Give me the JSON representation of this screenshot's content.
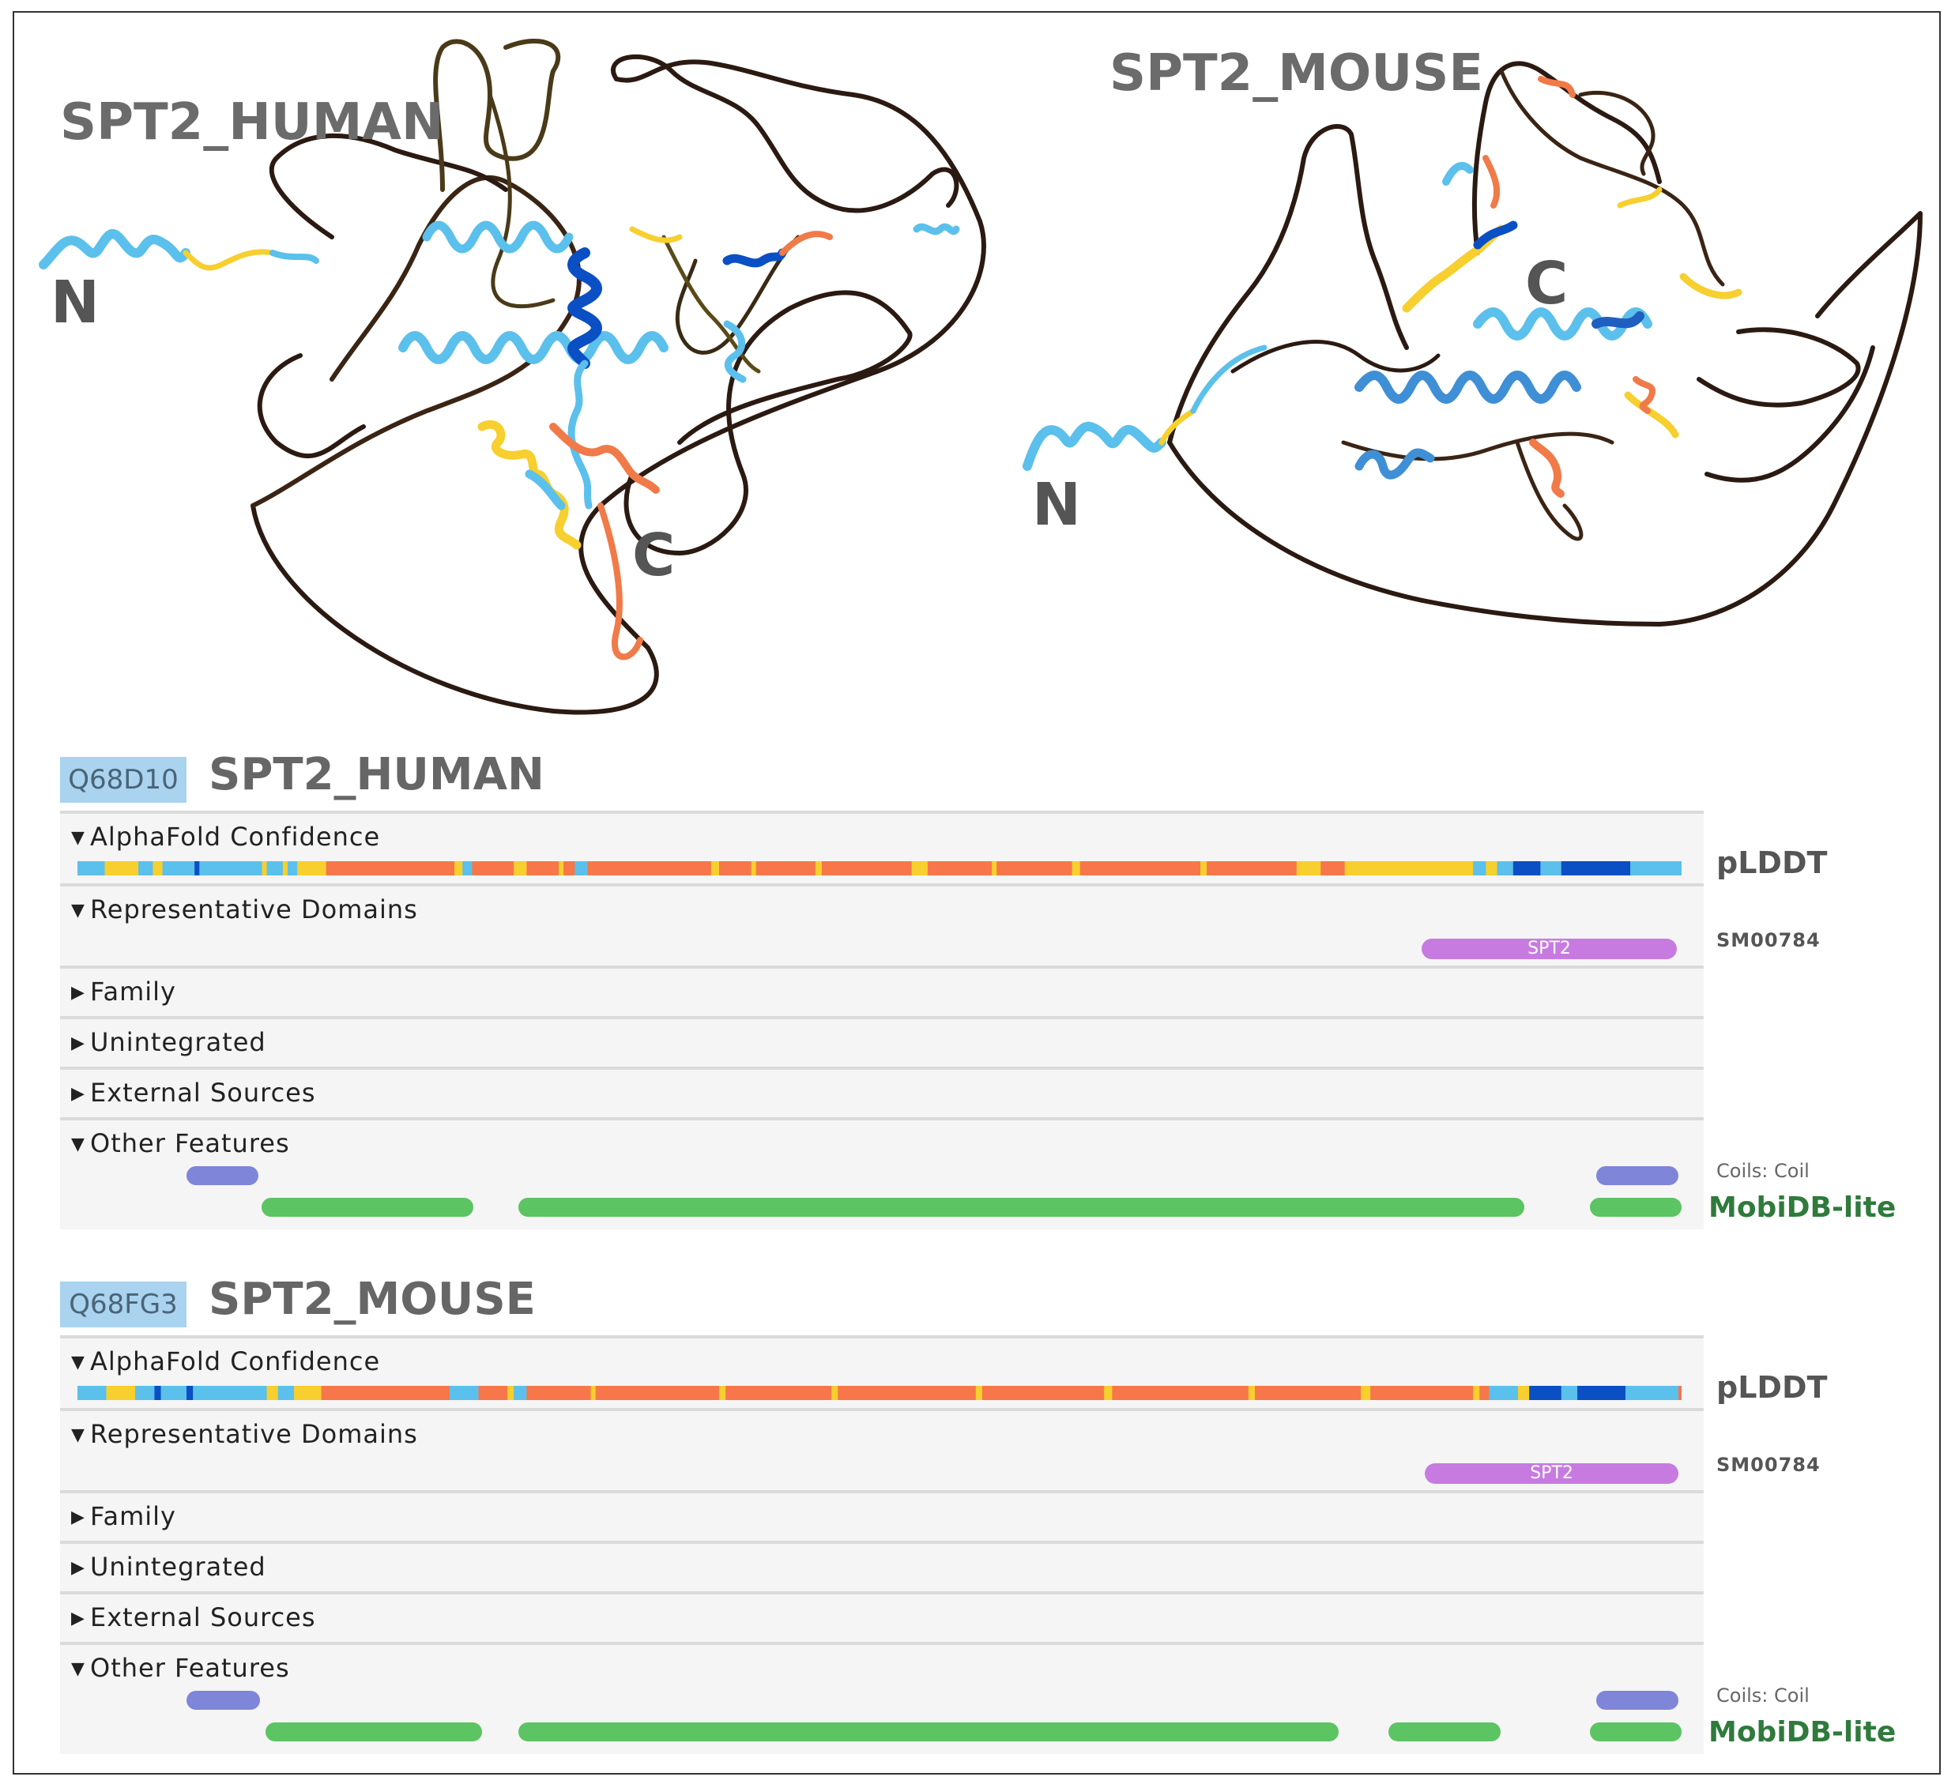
{
  "structures": {
    "human": {
      "title": "SPT2_HUMAN",
      "n_label": "N",
      "c_label": "C"
    },
    "mouse": {
      "title": "SPT2_MOUSE",
      "n_label": "N",
      "c_label": "C"
    }
  },
  "colors": {
    "very_high": "#0a4fc4",
    "confident": "#5bc0eb",
    "low": "#f7cf2e",
    "very_low": "#f7774a",
    "coil": "#7f85d9",
    "mobidb": "#5cc462",
    "domain": "#c77be0"
  },
  "panels": [
    {
      "accession": "Q68D10",
      "title": "SPT2_HUMAN",
      "sections": {
        "alphafold": "AlphaFold Confidence",
        "domains": "Representative Domains",
        "family": "Family",
        "unintegrated": "Unintegrated",
        "external": "External Sources",
        "other": "Other Features"
      },
      "plddt_label": "pLDDT",
      "domain": {
        "name": "SPT2",
        "source": "SM00784",
        "start": 0.838,
        "end": 0.997
      },
      "coils_label": "Coils: Coil",
      "mobidb_label": "MobiDB-lite",
      "coils": [
        [
          0.068,
          0.113
        ],
        [
          0.947,
          0.998
        ]
      ],
      "mobidb": [
        [
          0.115,
          0.247
        ],
        [
          0.275,
          0.902
        ],
        [
          0.943,
          1.0
        ]
      ],
      "plddt": [
        [
          "confident",
          0.0,
          0.017
        ],
        [
          "low",
          0.017,
          0.038
        ],
        [
          "confident",
          0.038,
          0.047
        ],
        [
          "low",
          0.047,
          0.053
        ],
        [
          "confident",
          0.053,
          0.073
        ],
        [
          "very_high",
          0.073,
          0.076
        ],
        [
          "confident",
          0.076,
          0.115
        ],
        [
          "low",
          0.115,
          0.118
        ],
        [
          "confident",
          0.118,
          0.128
        ],
        [
          "low",
          0.128,
          0.131
        ],
        [
          "confident",
          0.131,
          0.137
        ],
        [
          "low",
          0.137,
          0.155
        ],
        [
          "very_low",
          0.155,
          0.235
        ],
        [
          "low",
          0.235,
          0.24
        ],
        [
          "confident",
          0.24,
          0.246
        ],
        [
          "very_low",
          0.246,
          0.272
        ],
        [
          "low",
          0.272,
          0.28
        ],
        [
          "very_low",
          0.28,
          0.3
        ],
        [
          "low",
          0.3,
          0.303
        ],
        [
          "very_low",
          0.303,
          0.31
        ],
        [
          "confident",
          0.31,
          0.318
        ],
        [
          "very_low",
          0.318,
          0.395
        ],
        [
          "low",
          0.395,
          0.4
        ],
        [
          "very_low",
          0.4,
          0.42
        ],
        [
          "low",
          0.42,
          0.423
        ],
        [
          "very_low",
          0.423,
          0.46
        ],
        [
          "low",
          0.46,
          0.464
        ],
        [
          "very_low",
          0.464,
          0.52
        ],
        [
          "low",
          0.52,
          0.53
        ],
        [
          "very_low",
          0.53,
          0.57
        ],
        [
          "low",
          0.57,
          0.573
        ],
        [
          "very_low",
          0.573,
          0.62
        ],
        [
          "low",
          0.62,
          0.625
        ],
        [
          "very_low",
          0.625,
          0.7
        ],
        [
          "low",
          0.7,
          0.704
        ],
        [
          "very_low",
          0.704,
          0.76
        ],
        [
          "low",
          0.76,
          0.775
        ],
        [
          "very_low",
          0.775,
          0.79
        ],
        [
          "low",
          0.79,
          0.87
        ],
        [
          "confident",
          0.87,
          0.878
        ],
        [
          "low",
          0.878,
          0.885
        ],
        [
          "confident",
          0.885,
          0.895
        ],
        [
          "very_high",
          0.895,
          0.912
        ],
        [
          "confident",
          0.912,
          0.925
        ],
        [
          "very_high",
          0.925,
          0.968
        ],
        [
          "confident",
          0.968,
          1.0
        ]
      ]
    },
    {
      "accession": "Q68FG3",
      "title": "SPT2_MOUSE",
      "sections": {
        "alphafold": "AlphaFold Confidence",
        "domains": "Representative Domains",
        "family": "Family",
        "unintegrated": "Unintegrated",
        "external": "External Sources",
        "other": "Other Features"
      },
      "plddt_label": "pLDDT",
      "domain": {
        "name": "SPT2",
        "source": "SM00784",
        "start": 0.84,
        "end": 0.998
      },
      "coils_label": "Coils: Coil",
      "mobidb_label": "MobiDB-lite",
      "coils": [
        [
          0.068,
          0.114
        ],
        [
          0.947,
          0.998
        ]
      ],
      "mobidb": [
        [
          0.117,
          0.252
        ],
        [
          0.275,
          0.786
        ],
        [
          0.817,
          0.887
        ],
        [
          0.943,
          1.0
        ]
      ],
      "plddt": [
        [
          "confident",
          0.0,
          0.018
        ],
        [
          "low",
          0.018,
          0.036
        ],
        [
          "confident",
          0.036,
          0.048
        ],
        [
          "very_high",
          0.048,
          0.052
        ],
        [
          "confident",
          0.052,
          0.068
        ],
        [
          "very_high",
          0.068,
          0.072
        ],
        [
          "confident",
          0.072,
          0.118
        ],
        [
          "low",
          0.118,
          0.125
        ],
        [
          "confident",
          0.125,
          0.135
        ],
        [
          "low",
          0.135,
          0.152
        ],
        [
          "very_low",
          0.152,
          0.232
        ],
        [
          "confident",
          0.232,
          0.25
        ],
        [
          "very_low",
          0.25,
          0.268
        ],
        [
          "low",
          0.268,
          0.272
        ],
        [
          "confident",
          0.272,
          0.28
        ],
        [
          "very_low",
          0.28,
          0.32
        ],
        [
          "low",
          0.32,
          0.323
        ],
        [
          "very_low",
          0.323,
          0.4
        ],
        [
          "low",
          0.4,
          0.404
        ],
        [
          "very_low",
          0.404,
          0.47
        ],
        [
          "low",
          0.47,
          0.474
        ],
        [
          "very_low",
          0.474,
          0.56
        ],
        [
          "low",
          0.56,
          0.564
        ],
        [
          "very_low",
          0.564,
          0.64
        ],
        [
          "low",
          0.64,
          0.645
        ],
        [
          "very_low",
          0.645,
          0.73
        ],
        [
          "low",
          0.73,
          0.734
        ],
        [
          "very_low",
          0.734,
          0.8
        ],
        [
          "low",
          0.8,
          0.806
        ],
        [
          "very_low",
          0.806,
          0.87
        ],
        [
          "low",
          0.87,
          0.874
        ],
        [
          "very_low",
          0.874,
          0.88
        ],
        [
          "confident",
          0.88,
          0.898
        ],
        [
          "low",
          0.898,
          0.905
        ],
        [
          "very_high",
          0.905,
          0.925
        ],
        [
          "confident",
          0.925,
          0.935
        ],
        [
          "very_high",
          0.935,
          0.965
        ],
        [
          "confident",
          0.965,
          0.998
        ],
        [
          "very_low",
          0.998,
          1.0
        ]
      ]
    }
  ]
}
